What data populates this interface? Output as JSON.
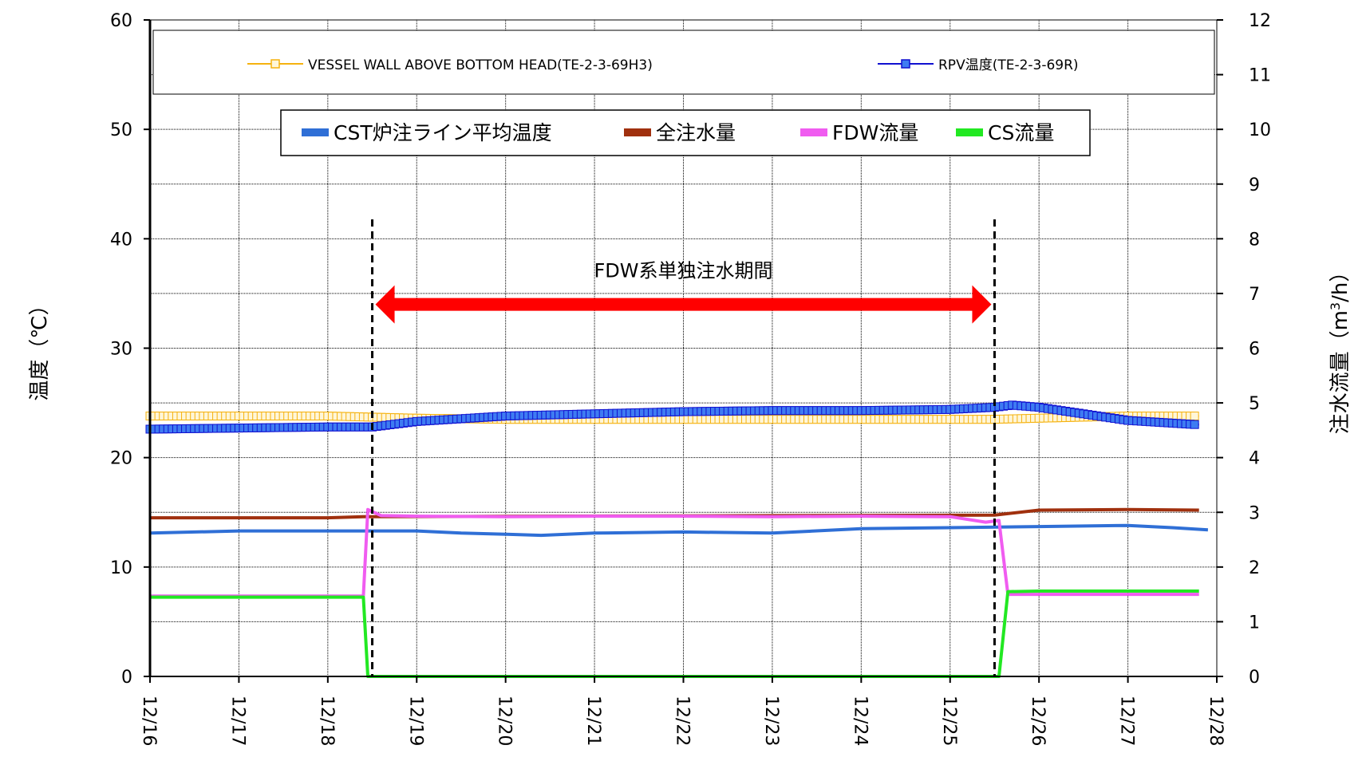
{
  "chart_data": {
    "type": "line",
    "ylabel_left": "温度（℃）",
    "ylabel_right_base": "注水流量（m",
    "ylabel_right_sup": "3",
    "ylabel_right_tail": "/h）",
    "xlim": [
      0,
      12
    ],
    "ylim_left": [
      0,
      60
    ],
    "ylim_right": [
      0,
      12
    ],
    "x_tick_labels": [
      "12/16",
      "12/17",
      "12/18",
      "12/19",
      "12/20",
      "12/21",
      "12/22",
      "12/23",
      "12/24",
      "12/25",
      "12/26",
      "12/27",
      "12/28"
    ],
    "y_left_ticks": [
      "0",
      "10",
      "20",
      "30",
      "40",
      "50",
      "60"
    ],
    "y_right_ticks": [
      "0",
      "1",
      "2",
      "3",
      "4",
      "5",
      "6",
      "7",
      "8",
      "9",
      "10",
      "11",
      "12"
    ],
    "grid": true,
    "legend_top": [
      {
        "name": "VESSEL WALL ABOVE BOTTOM HEAD(TE-2-3-69H3)",
        "color": "#F5B20F",
        "marker": "hollow-square"
      },
      {
        "name": "RPV温度(TE-2-3-69R)",
        "color": "#1010D0",
        "marker": "filled-square"
      }
    ],
    "legend_box": [
      {
        "name": "CST炉注ライン平均温度",
        "color": "#2F6FD6"
      },
      {
        "name": "全注水量",
        "color": "#A0300E"
      },
      {
        "name": "FDW流量",
        "color": "#F05CF0"
      },
      {
        "name": "CS流量",
        "color": "#22E822"
      }
    ],
    "annotation": {
      "text": "FDW系単独注水期間",
      "arrow_from_x": 2.5,
      "arrow_to_x": 9.5,
      "arrow_y_left": 34,
      "color": "#FF0000",
      "dashed_lines_x": [
        2.5,
        9.5
      ]
    },
    "series": [
      {
        "name": "VESSEL WALL ABOVE BOTTOM HEAD(TE-2-3-69H3)",
        "axis": "left",
        "color": "#F5B20F",
        "marker": "hollow-square",
        "x": [
          0,
          1,
          2,
          2.5,
          3,
          4,
          5,
          6,
          7,
          8,
          9,
          9.5,
          10,
          11,
          11.8
        ],
        "y": [
          23.8,
          23.8,
          23.8,
          23.7,
          23.6,
          23.5,
          23.5,
          23.5,
          23.5,
          23.5,
          23.5,
          23.5,
          23.6,
          23.8,
          23.8
        ]
      },
      {
        "name": "RPV温度(TE-2-3-69R)",
        "axis": "left",
        "color": "#1010D0",
        "marker": "filled-square",
        "x": [
          0,
          1,
          2,
          2.5,
          3,
          4,
          5,
          6,
          7,
          8,
          9,
          9.5,
          9.7,
          10,
          11,
          11.8
        ],
        "y": [
          22.6,
          22.7,
          22.8,
          22.8,
          23.3,
          23.8,
          24.0,
          24.2,
          24.3,
          24.3,
          24.4,
          24.6,
          24.8,
          24.6,
          23.4,
          23.0
        ]
      },
      {
        "name": "CST炉注ライン平均温度",
        "axis": "left",
        "color": "#2F6FD6",
        "x": [
          0,
          1,
          2,
          3,
          3.5,
          4,
          4.4,
          5,
          6,
          7,
          8,
          9,
          10,
          11,
          11.5,
          11.9
        ],
        "y": [
          13.1,
          13.3,
          13.3,
          13.3,
          13.1,
          13.0,
          12.9,
          13.1,
          13.2,
          13.1,
          13.5,
          13.6,
          13.7,
          13.8,
          13.6,
          13.4
        ]
      },
      {
        "name": "全注水量",
        "axis": "right",
        "color": "#A0300E",
        "x": [
          0,
          1,
          2,
          2.4,
          9.5,
          10,
          11,
          11.8
        ],
        "y": [
          2.9,
          2.9,
          2.9,
          2.92,
          2.95,
          3.04,
          3.05,
          3.04
        ]
      },
      {
        "name": "FDW流量",
        "axis": "right",
        "color": "#F05CF0",
        "x": [
          0,
          1,
          2,
          2.4,
          2.45,
          2.6,
          3,
          4,
          5,
          6,
          7,
          8,
          9,
          9.4,
          9.55,
          9.65,
          10,
          11,
          11.8
        ],
        "y": [
          1.47,
          1.47,
          1.47,
          1.47,
          3.05,
          2.94,
          2.93,
          2.92,
          2.93,
          2.93,
          2.92,
          2.93,
          2.92,
          2.82,
          2.85,
          1.5,
          1.5,
          1.5,
          1.5
        ]
      },
      {
        "name": "CS流量",
        "axis": "right",
        "color": "#22E822",
        "x": [
          0,
          1,
          2,
          2.4,
          2.45,
          9.55,
          9.65,
          10,
          11,
          11.8
        ],
        "y": [
          1.45,
          1.45,
          1.45,
          1.45,
          0,
          0,
          1.55,
          1.56,
          1.56,
          1.56
        ]
      }
    ]
  }
}
